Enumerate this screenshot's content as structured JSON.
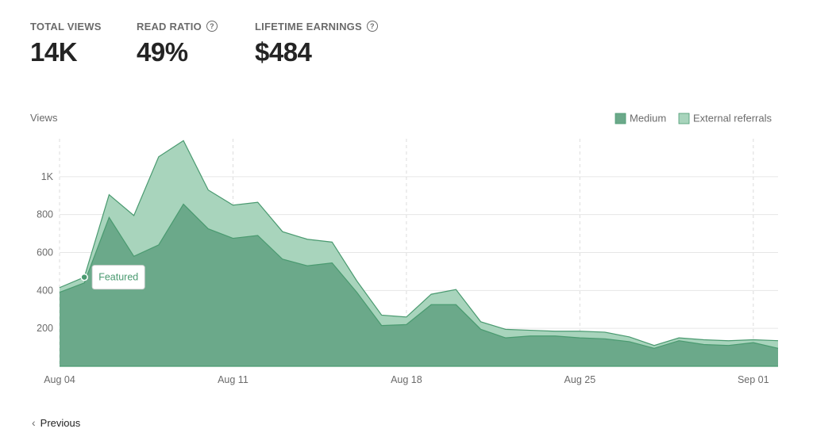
{
  "stats": [
    {
      "label": "TOTAL VIEWS",
      "value": "14K",
      "help": false
    },
    {
      "label": "READ RATIO",
      "value": "49%",
      "help": true
    },
    {
      "label": "LIFETIME EARNINGS",
      "value": "$484",
      "help": true
    }
  ],
  "help_icon": "question-circle-icon",
  "nav": {
    "previous_label": "Previous",
    "previous_icon": "chevron-left-icon"
  },
  "colors": {
    "medium": "#6ba98a",
    "external": "#a8d4bc",
    "accent": "#4a9a70",
    "grid": "#e6e6e6",
    "text": "#6b6b6b"
  },
  "chart_data": {
    "type": "area",
    "stacked": true,
    "ylabel": "Views",
    "ylim": [
      0,
      1200
    ],
    "ytick_values": [
      200,
      400,
      600,
      800,
      1000
    ],
    "ytick_labels": [
      "200",
      "400",
      "600",
      "800",
      "1K"
    ],
    "xtick_labels": [
      "Aug 04",
      "Aug 11",
      "Aug 18",
      "Aug 25",
      "Sep 01"
    ],
    "xtick_index": [
      0,
      7,
      14,
      21,
      28
    ],
    "legend": "top-right",
    "series": [
      {
        "name": "Medium",
        "color": "#6ba98a",
        "values": [
          390,
          440,
          785,
          580,
          640,
          855,
          725,
          675,
          690,
          565,
          530,
          545,
          390,
          215,
          220,
          325,
          325,
          195,
          150,
          160,
          160,
          150,
          145,
          130,
          95,
          135,
          115,
          110,
          125,
          95
        ]
      },
      {
        "name": "External referrals",
        "color": "#a8d4bc",
        "values": [
          25,
          30,
          120,
          215,
          465,
          335,
          205,
          175,
          175,
          145,
          140,
          110,
          60,
          55,
          40,
          55,
          80,
          40,
          45,
          30,
          25,
          35,
          35,
          25,
          15,
          15,
          25,
          25,
          15,
          40
        ]
      }
    ],
    "annotations": [
      {
        "index": 1,
        "label": "Featured"
      }
    ]
  }
}
